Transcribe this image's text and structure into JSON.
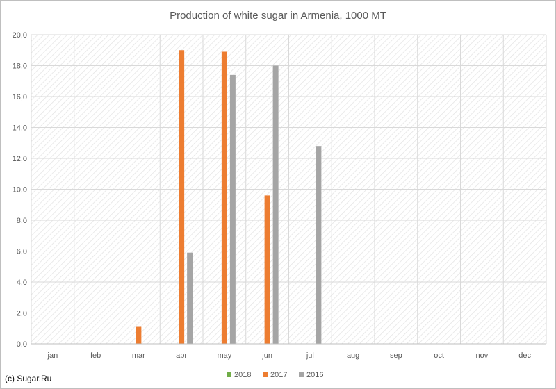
{
  "chart_data": {
    "type": "bar",
    "title": "Production of white sugar in Armenia, 1000 MT",
    "xlabel": "",
    "ylabel": "",
    "categories": [
      "jan",
      "feb",
      "mar",
      "apr",
      "may",
      "jun",
      "jul",
      "aug",
      "sep",
      "oct",
      "nov",
      "dec"
    ],
    "ylim": [
      0,
      20
    ],
    "yticks": [
      "0,0",
      "2,0",
      "4,0",
      "6,0",
      "8,0",
      "10,0",
      "12,0",
      "14,0",
      "16,0",
      "18,0",
      "20,0"
    ],
    "series": [
      {
        "name": "2018",
        "color": "#70ad47",
        "values": [
          null,
          null,
          null,
          null,
          null,
          null,
          null,
          null,
          null,
          null,
          null,
          null
        ]
      },
      {
        "name": "2017",
        "color": "#ed7d31",
        "values": [
          null,
          null,
          1.1,
          19.0,
          18.9,
          9.6,
          null,
          null,
          null,
          null,
          null,
          null
        ]
      },
      {
        "name": "2016",
        "color": "#a5a5a5",
        "values": [
          null,
          null,
          null,
          5.9,
          17.4,
          18.0,
          12.8,
          null,
          null,
          null,
          null,
          null
        ]
      }
    ],
    "grid": true,
    "legend_position": "bottom",
    "background": "diagonal-hatch"
  },
  "footer": {
    "credit": "(c) Sugar.Ru"
  }
}
